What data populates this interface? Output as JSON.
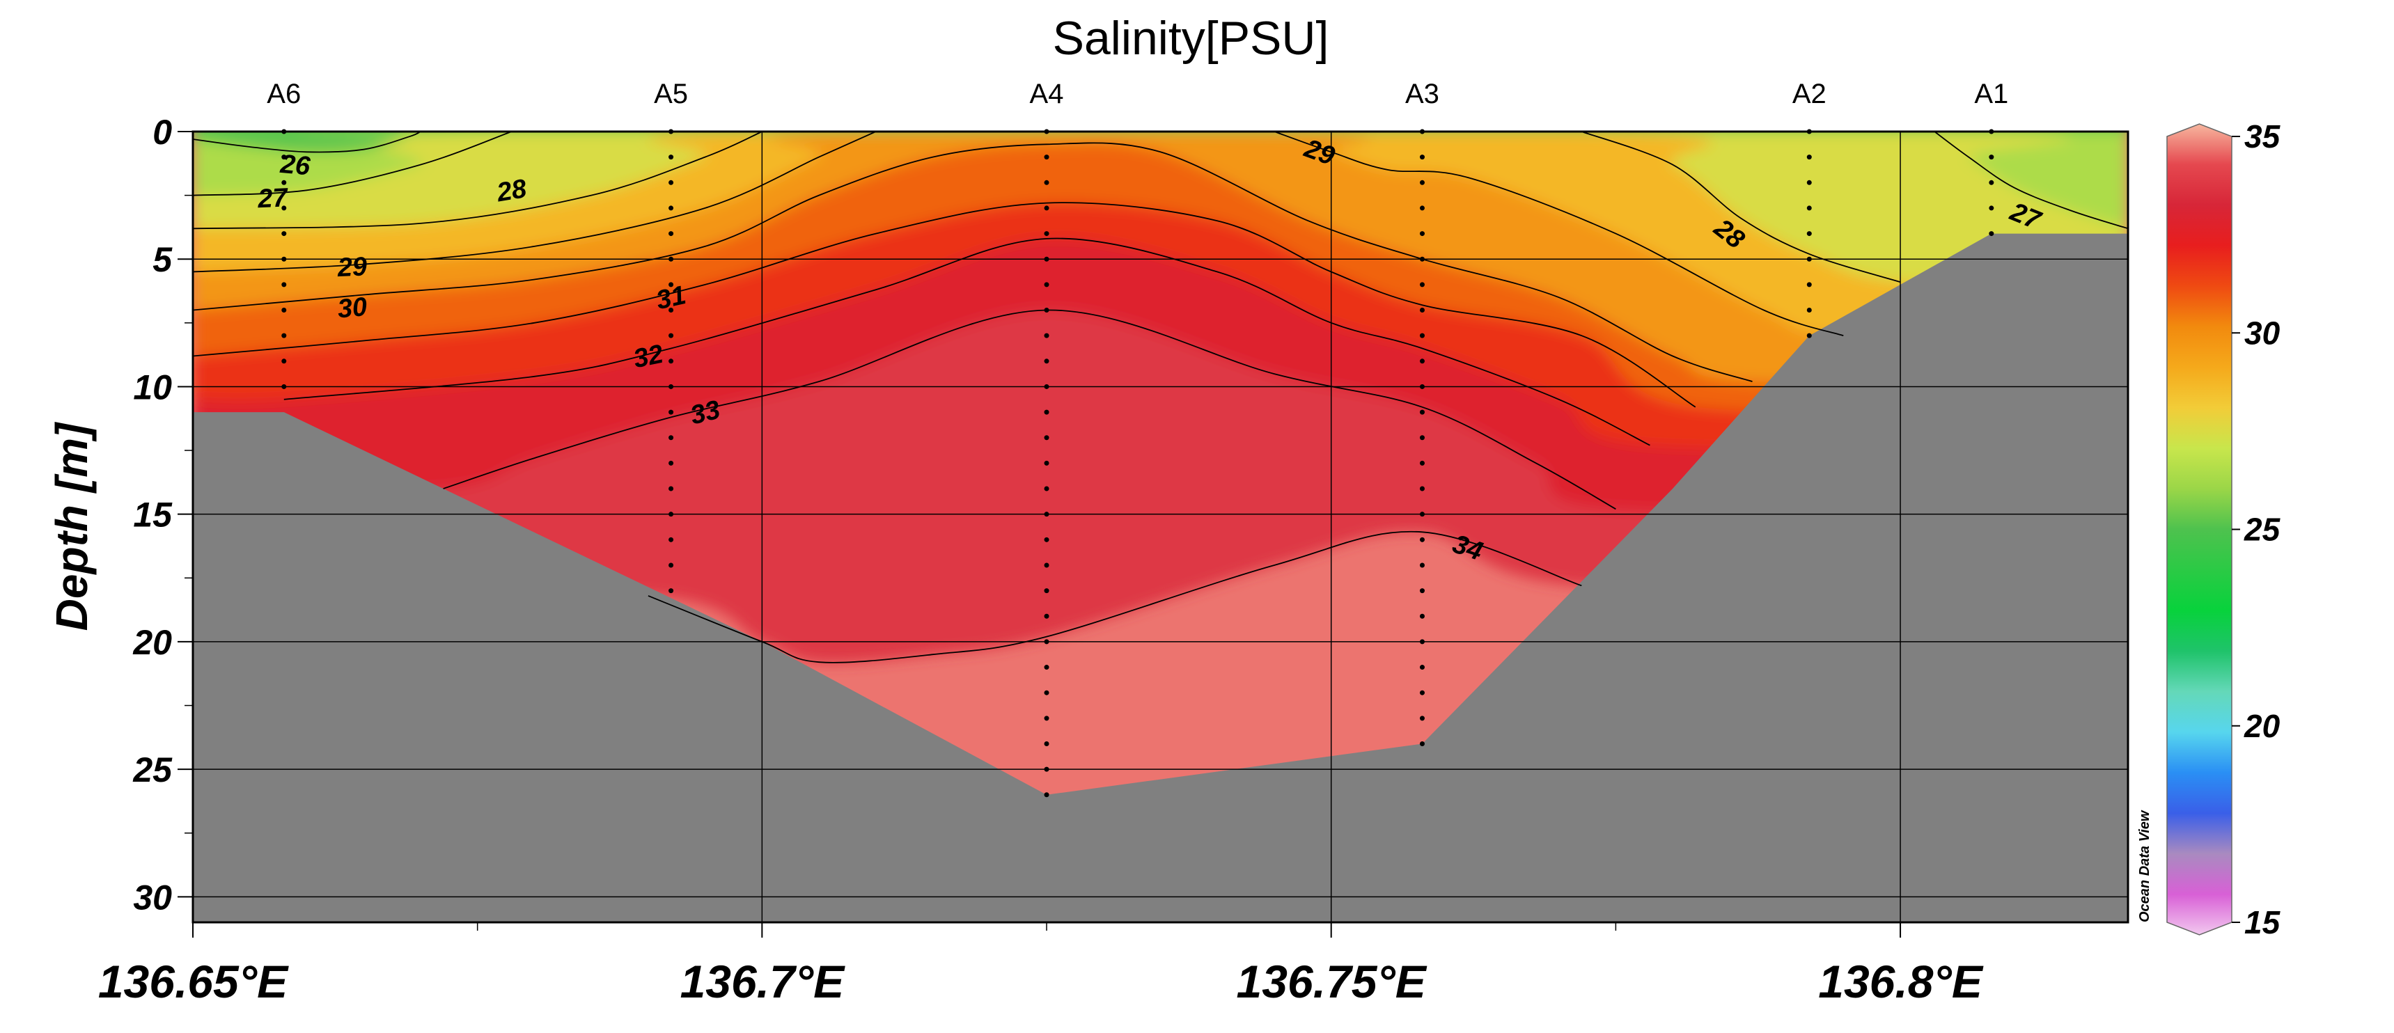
{
  "chart_data": {
    "type": "heatmap",
    "title": "Salinity[PSU]",
    "xlabel": "",
    "ylabel": "Depth [m]",
    "xlim": [
      136.65,
      136.82
    ],
    "ylim": [
      0,
      31
    ],
    "y_inverted": true,
    "grid": true,
    "x_ticks": [
      136.65,
      136.7,
      136.75,
      136.8
    ],
    "x_tick_labels": [
      "136.65°E",
      "136.7°E",
      "136.75°E",
      "136.8°E"
    ],
    "y_ticks": [
      0,
      5,
      10,
      15,
      20,
      25,
      30
    ],
    "y_tick_labels": [
      "0",
      "5",
      "10",
      "15",
      "20",
      "25",
      "30"
    ],
    "stations": [
      {
        "name": "A6",
        "lon": 136.658,
        "max_depth": 10
      },
      {
        "name": "A5",
        "lon": 136.692,
        "max_depth": 18
      },
      {
        "name": "A4",
        "lon": 136.725,
        "max_depth": 26
      },
      {
        "name": "A3",
        "lon": 136.758,
        "max_depth": 24
      },
      {
        "name": "A2",
        "lon": 136.792,
        "max_depth": 8
      },
      {
        "name": "A1",
        "lon": 136.808,
        "max_depth": 4
      }
    ],
    "bottom_profile": [
      {
        "lon": 136.65,
        "depth": 11
      },
      {
        "lon": 136.658,
        "depth": 11
      },
      {
        "lon": 136.7,
        "depth": 20
      },
      {
        "lon": 136.725,
        "depth": 26
      },
      {
        "lon": 136.758,
        "depth": 24
      },
      {
        "lon": 136.78,
        "depth": 14
      },
      {
        "lon": 136.792,
        "depth": 8
      },
      {
        "lon": 136.8,
        "depth": 6
      },
      {
        "lon": 136.808,
        "depth": 4
      },
      {
        "lon": 136.82,
        "depth": 4
      }
    ],
    "contours": [
      {
        "level": 26,
        "points": [
          [
            136.65,
            0.3
          ],
          [
            136.655,
            0.6
          ],
          [
            136.66,
            0.8
          ],
          [
            136.665,
            0.7
          ],
          [
            136.669,
            0.2
          ],
          [
            136.67,
            0
          ]
        ],
        "label_at": [
          136.659,
          1.3
        ]
      },
      {
        "level": 27,
        "points": [
          [
            136.65,
            2.5
          ],
          [
            136.66,
            2.3
          ],
          [
            136.67,
            1.3
          ],
          [
            136.678,
            0
          ]
        ],
        "label_at": [
          136.657,
          2.6
        ]
      },
      {
        "level": 27,
        "points": [
          [
            136.803,
            0
          ],
          [
            136.806,
            1.0
          ],
          [
            136.81,
            2.2
          ],
          [
            136.815,
            3.1
          ],
          [
            136.82,
            3.8
          ]
        ],
        "label_at": [
          136.811,
          3.3
        ]
      },
      {
        "level": 28,
        "points": [
          [
            136.65,
            3.8
          ],
          [
            136.67,
            3.6
          ],
          [
            136.685,
            2.5
          ],
          [
            136.695,
            1.0
          ],
          [
            136.7,
            0
          ]
        ],
        "label_at": [
          136.678,
          2.3
        ]
      },
      {
        "level": 28,
        "points": [
          [
            136.772,
            0
          ],
          [
            136.78,
            1.3
          ],
          [
            136.786,
            3.4
          ],
          [
            136.792,
            4.8
          ],
          [
            136.8,
            5.9
          ]
        ],
        "label_at": [
          136.785,
          4.0
        ]
      },
      {
        "level": 29,
        "points": [
          [
            136.65,
            5.5
          ],
          [
            136.665,
            5.2
          ],
          [
            136.68,
            4.5
          ],
          [
            136.695,
            3.0
          ],
          [
            136.705,
            1.0
          ],
          [
            136.71,
            0
          ]
        ],
        "label_at": [
          136.664,
          5.3
        ]
      },
      {
        "level": 29,
        "points": [
          [
            136.745,
            0
          ],
          [
            136.75,
            0.8
          ],
          [
            136.755,
            1.5
          ],
          [
            136.762,
            1.8
          ],
          [
            136.775,
            4.0
          ],
          [
            136.788,
            7.0
          ],
          [
            136.795,
            8.0
          ]
        ],
        "label_at": [
          136.749,
          0.8
        ]
      },
      {
        "level": 30,
        "points": [
          [
            136.65,
            7.0
          ],
          [
            136.665,
            6.4
          ],
          [
            136.68,
            5.8
          ],
          [
            136.695,
            4.5
          ],
          [
            136.705,
            2.5
          ],
          [
            136.715,
            1.0
          ],
          [
            136.725,
            0.5
          ],
          [
            136.735,
            0.8
          ],
          [
            136.748,
            3.5
          ],
          [
            136.758,
            5.0
          ],
          [
            136.77,
            6.5
          ],
          [
            136.78,
            8.8
          ],
          [
            136.787,
            9.8
          ]
        ],
        "label_at": [
          136.664,
          6.9
        ]
      },
      {
        "level": 31,
        "points": [
          [
            136.65,
            8.8
          ],
          [
            136.665,
            8.2
          ],
          [
            136.68,
            7.5
          ],
          [
            136.695,
            6.0
          ],
          [
            136.71,
            4.0
          ],
          [
            136.725,
            2.8
          ],
          [
            136.74,
            3.5
          ],
          [
            136.75,
            5.5
          ],
          [
            136.758,
            6.8
          ],
          [
            136.772,
            8.0
          ],
          [
            136.782,
            10.8
          ]
        ],
        "label_at": [
          136.692,
          6.5
        ]
      },
      {
        "level": 32,
        "points": [
          [
            136.658,
            10.5
          ],
          [
            136.68,
            9.6
          ],
          [
            136.692,
            8.5
          ],
          [
            136.71,
            6.2
          ],
          [
            136.725,
            4.2
          ],
          [
            136.74,
            5.5
          ],
          [
            136.75,
            7.5
          ],
          [
            136.758,
            8.5
          ],
          [
            136.77,
            10.5
          ],
          [
            136.778,
            12.3
          ]
        ],
        "label_at": [
          136.69,
          8.8
        ]
      },
      {
        "level": 33,
        "points": [
          [
            136.672,
            14.0
          ],
          [
            136.68,
            12.8
          ],
          [
            136.692,
            11.2
          ],
          [
            136.705,
            9.8
          ],
          [
            136.725,
            7.0
          ],
          [
            136.745,
            9.5
          ],
          [
            136.758,
            10.8
          ],
          [
            136.768,
            13.0
          ],
          [
            136.775,
            14.8
          ]
        ],
        "label_at": [
          136.695,
          11.0
        ]
      },
      {
        "level": 34,
        "points": [
          [
            136.69,
            18.2
          ],
          [
            136.7,
            20.0
          ],
          [
            136.705,
            20.8
          ],
          [
            136.715,
            20.5
          ],
          [
            136.725,
            19.8
          ],
          [
            136.745,
            17.0
          ],
          [
            136.758,
            15.7
          ],
          [
            136.772,
            17.8
          ]
        ],
        "label_at": [
          136.762,
          16.3
        ]
      }
    ],
    "colorbar": {
      "min": 15,
      "max": 35,
      "ticks": [
        15,
        20,
        25,
        30,
        35
      ],
      "tick_labels": [
        "15",
        "20",
        "25",
        "30",
        "35"
      ],
      "stops": [
        {
          "value": 15,
          "color": "#f2c8ef"
        },
        {
          "value": 16,
          "color": "#d860d6"
        },
        {
          "value": 17,
          "color": "#a98ac0"
        },
        {
          "value": 18,
          "color": "#3a5fe8"
        },
        {
          "value": 19,
          "color": "#2a8ff4"
        },
        {
          "value": 20,
          "color": "#57d6ee"
        },
        {
          "value": 21,
          "color": "#64d8b8"
        },
        {
          "value": 22,
          "color": "#1fc36a"
        },
        {
          "value": 23,
          "color": "#08d23c"
        },
        {
          "value": 25,
          "color": "#4ec24e"
        },
        {
          "value": 26,
          "color": "#9bd648"
        },
        {
          "value": 27,
          "color": "#c8e64c"
        },
        {
          "value": 28,
          "color": "#f2cc38"
        },
        {
          "value": 29,
          "color": "#f5a91b"
        },
        {
          "value": 30,
          "color": "#f28a0e"
        },
        {
          "value": 31,
          "color": "#ef4a12"
        },
        {
          "value": 32,
          "color": "#e81e1e"
        },
        {
          "value": 33,
          "color": "#d72638"
        },
        {
          "value": 34,
          "color": "#e5484f"
        },
        {
          "value": 35,
          "color": "#f7b79f"
        }
      ]
    },
    "colors": {
      "bottom": "#808080",
      "grid": "#000000",
      "contour": "#000000"
    },
    "credit": "Ocean Data View"
  }
}
